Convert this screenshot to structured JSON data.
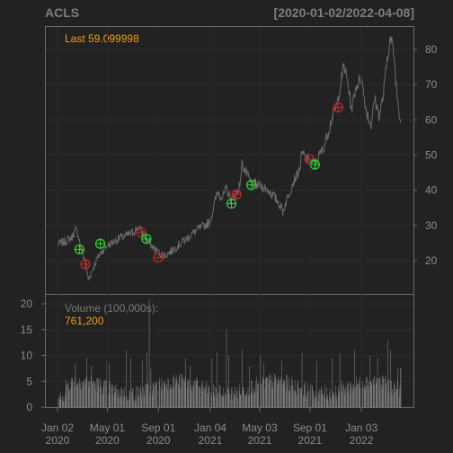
{
  "header": {
    "symbol": "ACLS",
    "date_range": "[2020-01-02/2022-04-08]"
  },
  "chart_data": {
    "type": "line",
    "title": "ACLS",
    "subtitle": "[2020-01-02/2022-04-08]",
    "price": {
      "last_label": "Last 59.099998",
      "last": 59.099998,
      "ylim": [
        13,
        86
      ],
      "yticks": [
        20,
        30,
        40,
        50,
        60,
        70,
        80
      ],
      "series_color": "#6b6b6b",
      "path": [
        [
          "2020-01-02",
          24.5
        ],
        [
          "2020-01-20",
          25.5
        ],
        [
          "2020-02-05",
          26.5
        ],
        [
          "2020-02-14",
          28.8
        ],
        [
          "2020-02-21",
          27.5
        ],
        [
          "2020-02-28",
          23.0
        ],
        [
          "2020-03-09",
          20.0
        ],
        [
          "2020-03-16",
          14.5
        ],
        [
          "2020-03-23",
          16.5
        ],
        [
          "2020-04-06",
          20.5
        ],
        [
          "2020-04-20",
          23.0
        ],
        [
          "2020-05-04",
          24.5
        ],
        [
          "2020-05-18",
          25.5
        ],
        [
          "2020-06-01",
          26.5
        ],
        [
          "2020-06-15",
          27.0
        ],
        [
          "2020-07-01",
          28.0
        ],
        [
          "2020-07-15",
          29.5
        ],
        [
          "2020-07-27",
          27.5
        ],
        [
          "2020-08-07",
          25.5
        ],
        [
          "2020-08-21",
          23.5
        ],
        [
          "2020-09-04",
          22.0
        ],
        [
          "2020-09-18",
          21.5
        ],
        [
          "2020-10-05",
          23.0
        ],
        [
          "2020-10-20",
          24.5
        ],
        [
          "2020-11-05",
          26.0
        ],
        [
          "2020-11-20",
          27.5
        ],
        [
          "2020-12-07",
          29.0
        ],
        [
          "2020-12-21",
          30.0
        ],
        [
          "2021-01-04",
          31.0
        ],
        [
          "2021-01-12",
          35.5
        ],
        [
          "2021-01-22",
          39.5
        ],
        [
          "2021-02-03",
          38.0
        ],
        [
          "2021-02-12",
          40.5
        ],
        [
          "2021-02-24",
          37.0
        ],
        [
          "2021-03-05",
          39.0
        ],
        [
          "2021-03-15",
          41.0
        ],
        [
          "2021-03-22",
          47.5
        ],
        [
          "2021-03-31",
          45.0
        ],
        [
          "2021-04-12",
          42.0
        ],
        [
          "2021-04-26",
          41.5
        ],
        [
          "2021-05-10",
          41.0
        ],
        [
          "2021-05-24",
          40.0
        ],
        [
          "2021-06-04",
          38.5
        ],
        [
          "2021-06-18",
          36.5
        ],
        [
          "2021-06-28",
          34.0
        ],
        [
          "2021-07-09",
          38.0
        ],
        [
          "2021-07-23",
          42.5
        ],
        [
          "2021-08-06",
          45.5
        ],
        [
          "2021-08-13",
          50.5
        ],
        [
          "2021-08-24",
          49.0
        ],
        [
          "2021-09-03",
          48.0
        ],
        [
          "2021-09-14",
          47.5
        ],
        [
          "2021-09-24",
          50.0
        ],
        [
          "2021-10-05",
          52.5
        ],
        [
          "2021-10-15",
          56.5
        ],
        [
          "2021-10-25",
          61.0
        ],
        [
          "2021-11-05",
          64.0
        ],
        [
          "2021-11-12",
          69.0
        ],
        [
          "2021-11-22",
          75.5
        ],
        [
          "2021-12-02",
          70.0
        ],
        [
          "2021-12-10",
          63.0
        ],
        [
          "2021-12-21",
          69.5
        ],
        [
          "2022-01-03",
          72.0
        ],
        [
          "2022-01-14",
          63.0
        ],
        [
          "2022-01-26",
          58.5
        ],
        [
          "2022-02-04",
          66.0
        ],
        [
          "2022-02-15",
          61.0
        ],
        [
          "2022-02-25",
          67.0
        ],
        [
          "2022-03-07",
          78.5
        ],
        [
          "2022-03-14",
          83.0
        ],
        [
          "2022-03-21",
          80.0
        ],
        [
          "2022-03-30",
          67.0
        ],
        [
          "2022-04-08",
          59.1
        ]
      ],
      "buy_signals": [
        [
          "2020-02-24",
          23.2
        ],
        [
          "2020-04-14",
          24.8
        ],
        [
          "2020-08-03",
          26.2
        ],
        [
          "2021-02-24",
          36.2
        ],
        [
          "2021-04-13",
          41.5
        ],
        [
          "2021-09-13",
          47.3
        ]
      ],
      "sell_signals": [
        [
          "2020-03-09",
          19.0
        ],
        [
          "2020-07-22",
          28.0
        ],
        [
          "2020-08-31",
          20.8
        ],
        [
          "2021-03-08",
          38.8
        ],
        [
          "2021-08-31",
          48.8
        ],
        [
          "2021-11-08",
          63.5
        ]
      ],
      "buy_color": "#2ecc2e",
      "sell_color": "#c0282a"
    },
    "volume": {
      "label": "Volume (100,000s):",
      "last_label": "761,200",
      "last": 7.612,
      "ylim": [
        0,
        22
      ],
      "yticks": [
        0,
        5,
        10,
        15,
        20
      ],
      "bar_color": "#7a7a7a",
      "spikes": [
        [
          "2020-02-14",
          8.5
        ],
        [
          "2020-03-12",
          9.5
        ],
        [
          "2020-03-24",
          8.0
        ],
        [
          "2020-04-30",
          9.0
        ],
        [
          "2020-05-06",
          8.5
        ],
        [
          "2020-06-16",
          11.0
        ],
        [
          "2020-06-26",
          9.5
        ],
        [
          "2020-07-24",
          9.0
        ],
        [
          "2020-08-04",
          10.5
        ],
        [
          "2020-08-10",
          21.0
        ],
        [
          "2020-08-14",
          7.5
        ],
        [
          "2020-11-05",
          9.5
        ],
        [
          "2020-11-16",
          8.0
        ],
        [
          "2021-01-08",
          9.5
        ],
        [
          "2021-01-20",
          10.5
        ],
        [
          "2021-02-12",
          15.0
        ],
        [
          "2021-02-17",
          10.0
        ],
        [
          "2021-03-22",
          11.0
        ],
        [
          "2021-04-08",
          8.0
        ],
        [
          "2021-05-05",
          10.0
        ],
        [
          "2021-05-13",
          8.5
        ],
        [
          "2021-06-25",
          9.0
        ],
        [
          "2021-08-13",
          10.5
        ],
        [
          "2021-09-17",
          9.0
        ],
        [
          "2021-10-25",
          9.5
        ],
        [
          "2021-11-12",
          10.5
        ],
        [
          "2021-12-17",
          11.0
        ],
        [
          "2022-01-24",
          10.0
        ],
        [
          "2022-02-11",
          9.5
        ],
        [
          "2022-03-07",
          13.0
        ],
        [
          "2022-03-14",
          11.0
        ],
        [
          "2022-04-01",
          7.6
        ]
      ]
    },
    "x_axis": {
      "start": "2020-01-02",
      "end": "2022-04-08",
      "ticks": [
        {
          "date": "2020-01-02",
          "line1": "Jan 02",
          "line2": "2020"
        },
        {
          "date": "2020-05-01",
          "line1": "May 01",
          "line2": "2020"
        },
        {
          "date": "2020-09-01",
          "line1": "Sep 01",
          "line2": "2020"
        },
        {
          "date": "2021-01-04",
          "line1": "Jan 04",
          "line2": "2021"
        },
        {
          "date": "2021-05-03",
          "line1": "May 03",
          "line2": "2021"
        },
        {
          "date": "2021-09-01",
          "line1": "Sep 01",
          "line2": "2021"
        },
        {
          "date": "2022-01-03",
          "line1": "Jan 03",
          "line2": "2022"
        }
      ]
    },
    "grid": true,
    "background": "#222222",
    "panel_border": "#6a6a6a"
  }
}
